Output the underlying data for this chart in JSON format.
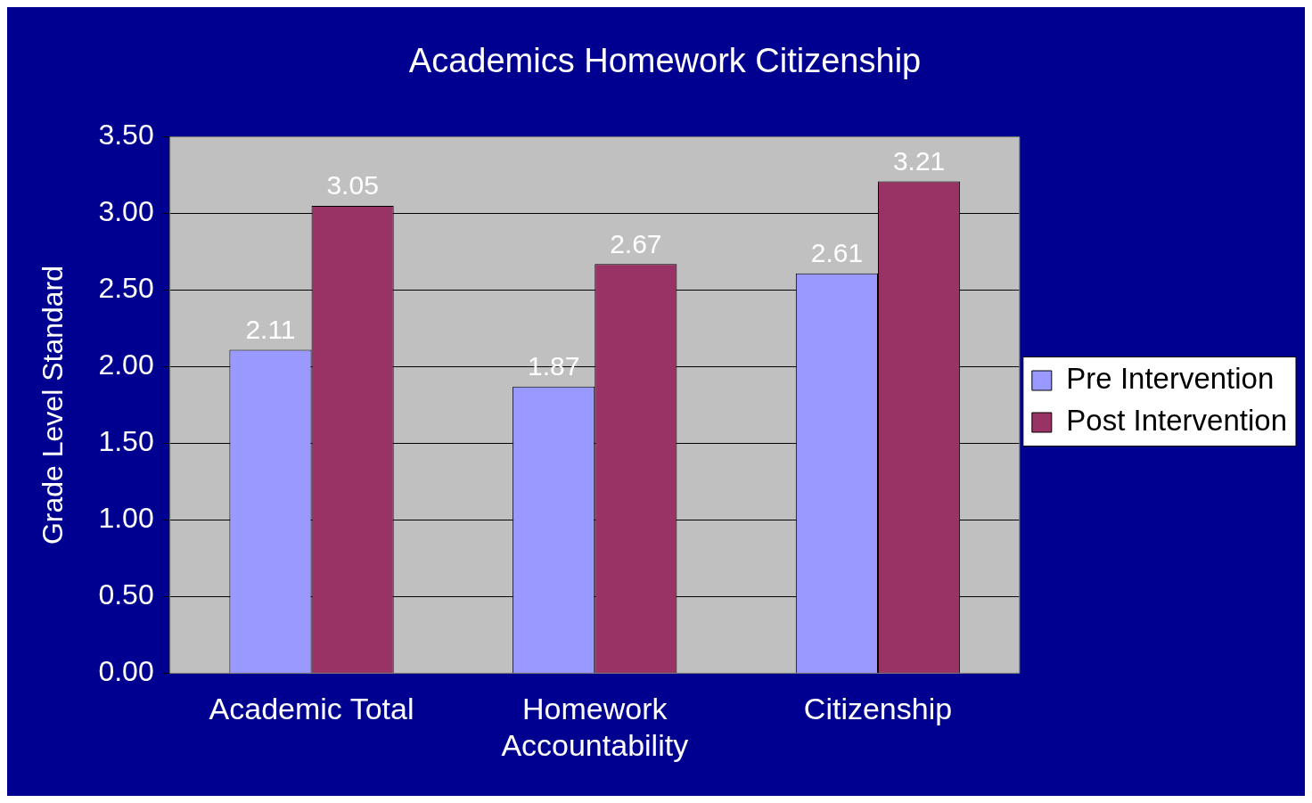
{
  "chart_data": {
    "type": "bar",
    "title": "Academics Homework Citizenship",
    "ylabel": "Grade Level Standard",
    "categories": [
      "Academic Total",
      "Homework Accountability",
      "Citizenship"
    ],
    "series": [
      {
        "name": "Pre Intervention",
        "color": "#9999ff",
        "values": [
          2.11,
          1.87,
          2.61
        ]
      },
      {
        "name": "Post Intervention",
        "color": "#993366",
        "values": [
          3.05,
          2.67,
          3.21
        ]
      }
    ],
    "ylim": [
      0,
      3.5
    ],
    "yticks": [
      {
        "value": 0,
        "label": "0.00"
      },
      {
        "value": 0.5,
        "label": "0.50"
      },
      {
        "value": 1,
        "label": "1.00"
      },
      {
        "value": 1.5,
        "label": "1.50"
      },
      {
        "value": 2,
        "label": "2.00"
      },
      {
        "value": 2.5,
        "label": "2.50"
      },
      {
        "value": 3,
        "label": "3.00"
      },
      {
        "value": 3.5,
        "label": "3.50"
      }
    ],
    "grid": "y",
    "legend": "right",
    "data_labels": true
  }
}
